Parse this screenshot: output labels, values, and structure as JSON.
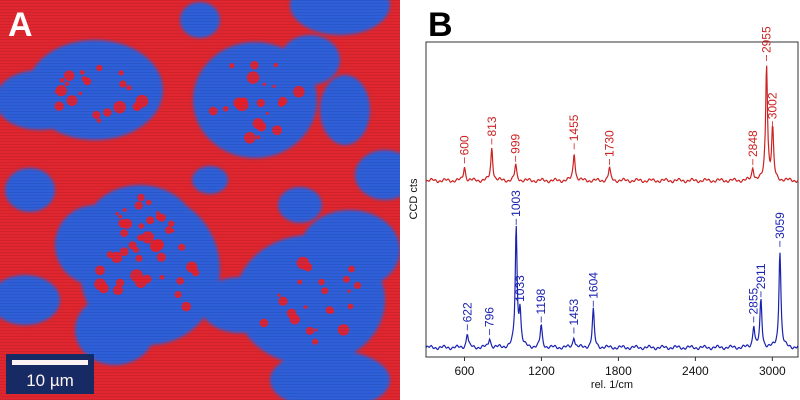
{
  "panel_a": {
    "letter": "A",
    "scale_bar_label": "10 µm",
    "colors": {
      "background": "#e0262e",
      "domain": "#2f5fd8",
      "hole": "#e8202a"
    }
  },
  "panel_b": {
    "letter": "B"
  },
  "chart_data": {
    "type": "line",
    "title": "",
    "xlabel": "rel. 1/cm",
    "ylabel": "CCD cts",
    "xlim": [
      300,
      3200
    ],
    "x_ticks": [
      600,
      1200,
      1800,
      2400,
      3000
    ],
    "grid": false,
    "legend": "none",
    "series": [
      {
        "color": "#cc2222",
        "baseline": 0.56,
        "peaks": [
          {
            "x": 600,
            "h": 0.045,
            "label": "600"
          },
          {
            "x": 813,
            "h": 0.105,
            "label": "813"
          },
          {
            "x": 999,
            "h": 0.05,
            "label": "999"
          },
          {
            "x": 1455,
            "h": 0.09,
            "label": "1455"
          },
          {
            "x": 1730,
            "h": 0.04,
            "label": "1730"
          },
          {
            "x": 2848,
            "h": 0.04,
            "label": "2848"
          },
          {
            "x": 2955,
            "h": 0.37,
            "label": "2955"
          },
          {
            "x": 3002,
            "h": 0.16,
            "label": "3002"
          }
        ]
      },
      {
        "color": "#1a22b0",
        "baseline": 0.03,
        "peaks": [
          {
            "x": 622,
            "h": 0.045,
            "label": "622"
          },
          {
            "x": 796,
            "h": 0.03,
            "label": "796"
          },
          {
            "x": 1003,
            "h": 0.38,
            "label": "1003"
          },
          {
            "x": 1033,
            "h": 0.11,
            "label": "1033"
          },
          {
            "x": 1198,
            "h": 0.07,
            "label": "1198"
          },
          {
            "x": 1453,
            "h": 0.035,
            "label": "1453"
          },
          {
            "x": 1604,
            "h": 0.12,
            "label": "1604"
          },
          {
            "x": 2855,
            "h": 0.07,
            "label": "2855"
          },
          {
            "x": 2911,
            "h": 0.15,
            "label": "2911"
          },
          {
            "x": 3059,
            "h": 0.31,
            "label": "3059"
          }
        ]
      }
    ]
  }
}
